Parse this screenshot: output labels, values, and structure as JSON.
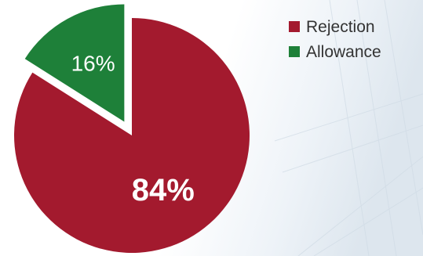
{
  "chart_data": {
    "type": "pie",
    "slices": [
      {
        "label": "Rejection",
        "value": 84,
        "value_label": "84%",
        "color": "#A31A2E"
      },
      {
        "label": "Allowance",
        "value": 16,
        "value_label": "16%",
        "color": "#1E8039"
      }
    ],
    "legend_position": "top-right",
    "exploded_slice": "Allowance"
  }
}
